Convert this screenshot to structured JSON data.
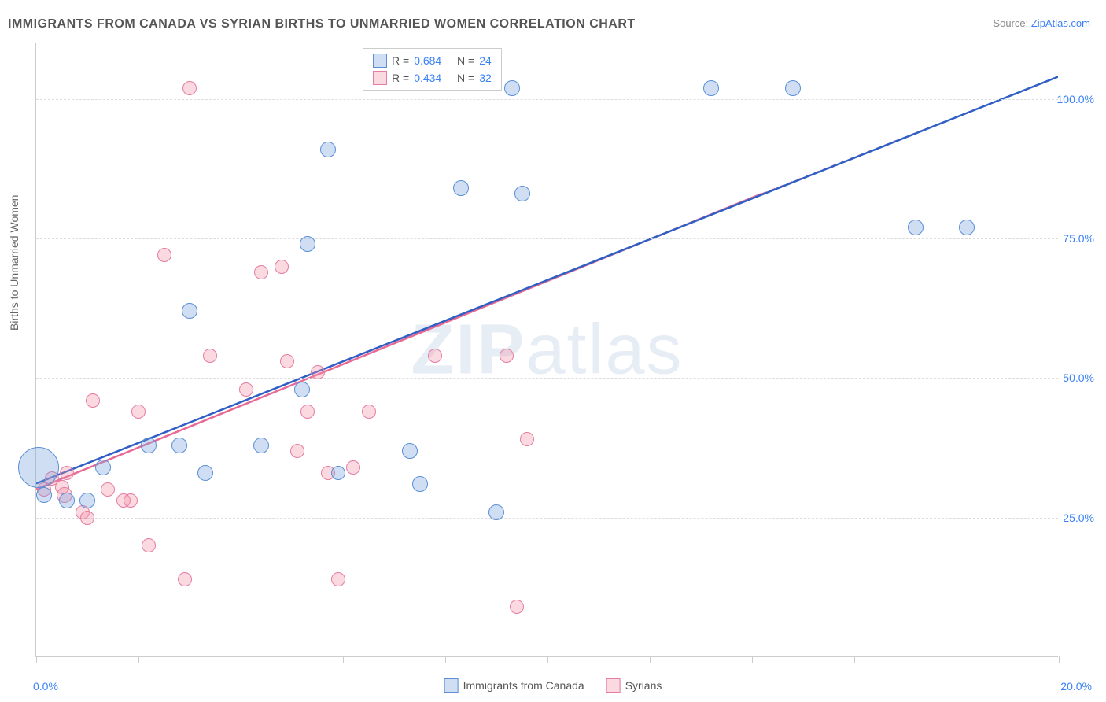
{
  "title": "IMMIGRANTS FROM CANADA VS SYRIAN BIRTHS TO UNMARRIED WOMEN CORRELATION CHART",
  "source_label": "Source:",
  "source_name": "ZipAtlas.com",
  "ylabel": "Births to Unmarried Women",
  "watermark_a": "ZIP",
  "watermark_b": "atlas",
  "chart": {
    "type": "scatter",
    "xlim": [
      0,
      20
    ],
    "ylim": [
      0,
      110
    ],
    "x_ticks": [
      0,
      2,
      4,
      6,
      8,
      10,
      12,
      14,
      16,
      18,
      20
    ],
    "x_tick_labels": {
      "0": "0.0%",
      "20": "20.0%"
    },
    "y_gridlines": [
      25,
      50,
      75,
      100
    ],
    "y_tick_labels": {
      "25": "25.0%",
      "50": "50.0%",
      "75": "75.0%",
      "100": "100.0%"
    },
    "grid_color": "#dddddd",
    "axis_color": "#cccccc",
    "label_color_axis": "#666666",
    "tick_label_color": "#3b82f6",
    "background_color": "#ffffff",
    "title_fontsize": 16,
    "label_fontsize": 14
  },
  "series": {
    "blue": {
      "label": "Immigrants from Canada",
      "fill": "rgba(120,160,220,0.35)",
      "stroke": "#5a8fd6",
      "R_label": "R =",
      "R": "0.684",
      "N_label": "N =",
      "N": "24",
      "regression": {
        "x1": 0,
        "y1": 31,
        "x2": 20,
        "y2": 104,
        "dash": "none",
        "dash_ext_x": 20,
        "dash_ext_y": 104
      },
      "points": [
        {
          "x": 0.05,
          "y": 34,
          "r": 26
        },
        {
          "x": 0.15,
          "y": 29,
          "r": 10
        },
        {
          "x": 0.6,
          "y": 28,
          "r": 10
        },
        {
          "x": 1.0,
          "y": 28,
          "r": 10
        },
        {
          "x": 1.3,
          "y": 34,
          "r": 10
        },
        {
          "x": 2.2,
          "y": 38,
          "r": 10
        },
        {
          "x": 2.8,
          "y": 38,
          "r": 10
        },
        {
          "x": 3.0,
          "y": 62,
          "r": 10
        },
        {
          "x": 3.3,
          "y": 33,
          "r": 10
        },
        {
          "x": 4.4,
          "y": 38,
          "r": 10
        },
        {
          "x": 5.2,
          "y": 48,
          "r": 10
        },
        {
          "x": 5.3,
          "y": 74,
          "r": 10
        },
        {
          "x": 5.7,
          "y": 91,
          "r": 10
        },
        {
          "x": 5.9,
          "y": 33,
          "r": 9
        },
        {
          "x": 7.3,
          "y": 37,
          "r": 10
        },
        {
          "x": 7.5,
          "y": 31,
          "r": 10
        },
        {
          "x": 8.3,
          "y": 84,
          "r": 10
        },
        {
          "x": 9.0,
          "y": 26,
          "r": 10
        },
        {
          "x": 9.3,
          "y": 102,
          "r": 10
        },
        {
          "x": 9.5,
          "y": 83,
          "r": 10
        },
        {
          "x": 13.2,
          "y": 102,
          "r": 10
        },
        {
          "x": 14.8,
          "y": 102,
          "r": 10
        },
        {
          "x": 17.2,
          "y": 77,
          "r": 10
        },
        {
          "x": 18.2,
          "y": 77,
          "r": 10
        }
      ]
    },
    "pink": {
      "label": "Syrians",
      "fill": "rgba(240,145,170,0.35)",
      "stroke": "#e57da0",
      "R_label": "R =",
      "R": "0.434",
      "N_label": "N =",
      "N": "32",
      "regression": {
        "x1": 0,
        "y1": 30,
        "x2": 14.2,
        "y2": 83,
        "dash": "none",
        "dash_ext_x": 20,
        "dash_ext_y": 104
      },
      "points": [
        {
          "x": 0.15,
          "y": 30,
          "r": 9
        },
        {
          "x": 0.3,
          "y": 32,
          "r": 9
        },
        {
          "x": 0.5,
          "y": 30.5,
          "r": 9
        },
        {
          "x": 0.55,
          "y": 29,
          "r": 10
        },
        {
          "x": 0.6,
          "y": 33,
          "r": 9
        },
        {
          "x": 0.9,
          "y": 26,
          "r": 9
        },
        {
          "x": 1.0,
          "y": 25,
          "r": 9
        },
        {
          "x": 1.1,
          "y": 46,
          "r": 9
        },
        {
          "x": 1.4,
          "y": 30,
          "r": 9
        },
        {
          "x": 1.7,
          "y": 28,
          "r": 9
        },
        {
          "x": 1.85,
          "y": 28,
          "r": 9
        },
        {
          "x": 2.0,
          "y": 44,
          "r": 9
        },
        {
          "x": 2.2,
          "y": 20,
          "r": 9
        },
        {
          "x": 2.5,
          "y": 72,
          "r": 9
        },
        {
          "x": 2.9,
          "y": 14,
          "r": 9
        },
        {
          "x": 3.0,
          "y": 102,
          "r": 9
        },
        {
          "x": 3.4,
          "y": 54,
          "r": 9
        },
        {
          "x": 4.1,
          "y": 48,
          "r": 9
        },
        {
          "x": 4.4,
          "y": 69,
          "r": 9
        },
        {
          "x": 4.8,
          "y": 70,
          "r": 9
        },
        {
          "x": 4.9,
          "y": 53,
          "r": 9
        },
        {
          "x": 5.1,
          "y": 37,
          "r": 9
        },
        {
          "x": 5.3,
          "y": 44,
          "r": 9
        },
        {
          "x": 5.5,
          "y": 51,
          "r": 9
        },
        {
          "x": 5.7,
          "y": 33,
          "r": 9
        },
        {
          "x": 5.9,
          "y": 14,
          "r": 9
        },
        {
          "x": 6.2,
          "y": 34,
          "r": 9
        },
        {
          "x": 6.5,
          "y": 44,
          "r": 9
        },
        {
          "x": 7.8,
          "y": 54,
          "r": 9
        },
        {
          "x": 9.2,
          "y": 54,
          "r": 9
        },
        {
          "x": 9.4,
          "y": 9,
          "r": 9
        },
        {
          "x": 9.6,
          "y": 39,
          "r": 9
        }
      ]
    }
  }
}
